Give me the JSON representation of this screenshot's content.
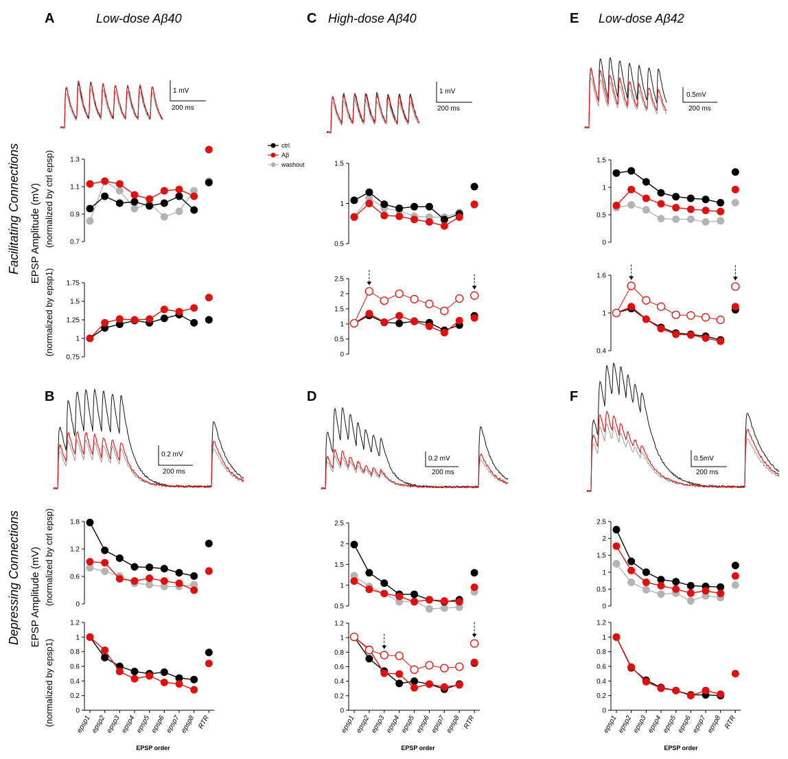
{
  "colors": {
    "ctrl": "#000000",
    "abeta": "#e0100f",
    "washout": "#b4b4b4"
  },
  "row_labels": {
    "facilitating": "Facilitating Connections",
    "depressing": "Depressing Connections",
    "ylabel_main": "EPSP Amplitude (mV)",
    "ylabel_ctrl": "(normalized by ctrl epsp)",
    "ylabel_epsp1": "(normalized by epsp1)"
  },
  "legend": [
    {
      "key": "ctrl",
      "label": "ctrl"
    },
    {
      "key": "abeta",
      "label": "Aβ"
    },
    {
      "key": "washout",
      "label": "washout"
    }
  ],
  "xlabel": "EPSP order",
  "categories": [
    "epsp1",
    "epsp2",
    "epsp3",
    "epsp4",
    "epsp5",
    "epsp6",
    "epsp7",
    "epsp8",
    "RTR"
  ],
  "panels": [
    {
      "letter": "A",
      "title": "Low-dose Aβ40",
      "scalebar": {
        "amp": "1 mV",
        "time": "200 ms"
      }
    },
    {
      "letter": "B",
      "title": "",
      "scalebar": {
        "amp": "0.2 mV",
        "time": "200 ms"
      }
    },
    {
      "letter": "C",
      "title": "High-dose Aβ40",
      "scalebar": {
        "amp": "1 mV",
        "time": "200 ms"
      }
    },
    {
      "letter": "D",
      "title": "",
      "scalebar": {
        "amp": "0.2 mV",
        "time": "200 ms"
      }
    },
    {
      "letter": "E",
      "title": "Low-dose Aβ42",
      "scalebar": {
        "amp": "0.5mV",
        "time": "200 ms"
      }
    },
    {
      "letter": "F",
      "title": "",
      "scalebar": {
        "amp": "0.5mV",
        "time": "200 ms"
      }
    }
  ],
  "chart_data": [
    {
      "panel": "A",
      "kind": "normalized by ctrl epsp",
      "type": "line",
      "ylim": [
        0.7,
        1.3
      ],
      "yticks": [
        "0.7",
        "0.9",
        "1.1",
        "1.3"
      ],
      "series": [
        {
          "name": "ctrl",
          "values": [
            0.94,
            1.03,
            0.98,
            0.99,
            0.96,
            0.98,
            1.03,
            0.93
          ],
          "rtr": 1.13
        },
        {
          "name": "Aβ",
          "values": [
            1.12,
            1.14,
            1.12,
            1.04,
            1.01,
            1.07,
            1.08,
            1.03
          ],
          "rtr": 1.37
        },
        {
          "name": "washout",
          "values": [
            0.85,
            1.14,
            1.07,
            0.94,
            0.98,
            0.88,
            0.92,
            1.07
          ],
          "rtr": 1.14
        }
      ]
    },
    {
      "panel": "A",
      "kind": "normalized by epsp1",
      "type": "line",
      "ylim": [
        0.75,
        1.75
      ],
      "yticks": [
        "0.75",
        "1",
        "1.25",
        "1.5",
        "1.75"
      ],
      "series": [
        {
          "name": "ctrl",
          "values": [
            1.0,
            1.14,
            1.19,
            1.24,
            1.21,
            1.27,
            1.32,
            1.21
          ],
          "rtr": 1.25
        },
        {
          "name": "Aβ",
          "values": [
            1.0,
            1.21,
            1.26,
            1.25,
            1.26,
            1.39,
            1.36,
            1.41
          ],
          "rtr": 1.55
        }
      ]
    },
    {
      "panel": "C",
      "kind": "normalized by ctrl epsp",
      "type": "line",
      "ylim": [
        0.5,
        1.5
      ],
      "yticks": [
        "0.5",
        "1",
        "1.5"
      ],
      "series": [
        {
          "name": "ctrl",
          "values": [
            1.04,
            1.14,
            0.99,
            0.94,
            0.96,
            0.96,
            0.8,
            0.87
          ],
          "rtr": 1.21
        },
        {
          "name": "Aβ",
          "values": [
            0.83,
            1.0,
            0.85,
            0.84,
            0.8,
            0.77,
            0.72,
            0.83
          ],
          "rtr": 0.99
        },
        {
          "name": "washout",
          "values": [
            0.84,
            1.07,
            0.94,
            0.91,
            0.84,
            0.83,
            0.83,
            0.89
          ],
          "rtr": 0.98
        }
      ]
    },
    {
      "panel": "C",
      "kind": "normalized by epsp1",
      "type": "line",
      "ylim": [
        0,
        2.5
      ],
      "yticks": [
        "0",
        "0.5",
        "1",
        "1.5",
        "2",
        "2.5"
      ],
      "series": [
        {
          "name": "ctrl",
          "values": [
            1.02,
            1.28,
            1.05,
            1.02,
            1.09,
            1.04,
            0.79,
            0.96
          ],
          "rtr": 1.27
        },
        {
          "name": "Aβ",
          "values": [
            1.02,
            1.34,
            1.06,
            1.27,
            1.08,
            0.92,
            0.71,
            1.11
          ],
          "rtr": 1.2
        },
        {
          "name": "Aβ (scaled)",
          "values": [
            1.02,
            2.08,
            1.77,
            2.0,
            1.82,
            1.66,
            1.43,
            1.84
          ],
          "rtr": 1.94
        }
      ]
    },
    {
      "panel": "E",
      "kind": "normalized by ctrl epsp",
      "type": "line",
      "ylim": [
        0,
        1.5
      ],
      "yticks": [
        "0",
        "0.5",
        "1",
        "1.5"
      ],
      "series": [
        {
          "name": "ctrl",
          "values": [
            1.26,
            1.3,
            1.1,
            0.9,
            0.83,
            0.8,
            0.78,
            0.72
          ],
          "rtr": 1.28
        },
        {
          "name": "Aβ",
          "values": [
            0.67,
            0.96,
            0.8,
            0.7,
            0.63,
            0.6,
            0.58,
            0.56
          ],
          "rtr": 0.96
        },
        {
          "name": "washout",
          "values": [
            0.63,
            0.68,
            0.59,
            0.43,
            0.42,
            0.42,
            0.37,
            0.39
          ],
          "rtr": 0.72
        }
      ]
    },
    {
      "panel": "E",
      "kind": "normalized by epsp1",
      "type": "line",
      "ylim": [
        0.4,
        1.6
      ],
      "yticks": [
        "0.4",
        "1",
        "1.6"
      ],
      "series": [
        {
          "name": "ctrl",
          "values": [
            1.0,
            1.07,
            0.9,
            0.77,
            0.68,
            0.66,
            0.63,
            0.57
          ],
          "rtr": 1.05
        },
        {
          "name": "Aβ",
          "values": [
            1.0,
            1.1,
            0.9,
            0.75,
            0.66,
            0.65,
            0.6,
            0.55
          ],
          "rtr": 1.1
        },
        {
          "name": "Aβ (scaled)",
          "values": [
            1.0,
            1.43,
            1.2,
            1.1,
            0.97,
            0.96,
            0.93,
            0.89
          ],
          "rtr": 1.42
        }
      ]
    },
    {
      "panel": "B",
      "kind": "normalized by ctrl epsp",
      "type": "line",
      "ylim": [
        0,
        1.8
      ],
      "yticks": [
        "0",
        "0.6",
        "1.2",
        "1.8"
      ],
      "series": [
        {
          "name": "ctrl",
          "values": [
            1.78,
            1.17,
            1.0,
            0.81,
            0.8,
            0.77,
            0.68,
            0.61
          ],
          "rtr": 1.32
        },
        {
          "name": "Aβ",
          "values": [
            0.92,
            0.9,
            0.55,
            0.5,
            0.56,
            0.5,
            0.45,
            0.3
          ],
          "rtr": 0.72
        },
        {
          "name": "washout",
          "values": [
            0.79,
            0.71,
            0.61,
            0.45,
            0.42,
            0.38,
            0.38,
            0.42
          ],
          "rtr": 0.71
        }
      ]
    },
    {
      "panel": "B",
      "kind": "normalized by epsp1",
      "type": "line",
      "ylim": [
        0,
        1.2
      ],
      "yticks": [
        "0",
        "0.2",
        "0.4",
        "0.6",
        "0.8",
        "1",
        "1.2"
      ],
      "series": [
        {
          "name": "ctrl",
          "values": [
            1.0,
            0.72,
            0.6,
            0.53,
            0.5,
            0.52,
            0.44,
            0.42
          ],
          "rtr": 0.79
        },
        {
          "name": "Aβ",
          "values": [
            1.0,
            0.82,
            0.53,
            0.43,
            0.47,
            0.38,
            0.36,
            0.28
          ],
          "rtr": 0.64
        }
      ]
    },
    {
      "panel": "D",
      "kind": "normalized by ctrl epsp",
      "type": "line",
      "ylim": [
        0.5,
        2.5
      ],
      "yticks": [
        "0.5",
        "1",
        "1.5",
        "2",
        "2.5"
      ],
      "series": [
        {
          "name": "ctrl",
          "values": [
            1.98,
            1.3,
            1.05,
            0.78,
            0.78,
            0.65,
            0.6,
            0.65
          ],
          "rtr": 1.3
        },
        {
          "name": "Aβ",
          "values": [
            1.1,
            0.9,
            0.8,
            0.73,
            0.6,
            0.65,
            0.62,
            0.6
          ],
          "rtr": 0.95
        },
        {
          "name": "washout",
          "values": [
            1.23,
            0.97,
            0.8,
            0.6,
            0.62,
            0.43,
            0.45,
            0.47
          ],
          "rtr": 0.84
        }
      ]
    },
    {
      "panel": "D",
      "kind": "normalized by epsp1",
      "type": "line",
      "ylim": [
        0,
        1.2
      ],
      "yticks": [
        "0",
        "0.2",
        "0.4",
        "0.6",
        "0.8",
        "1",
        "1.2"
      ],
      "series": [
        {
          "name": "ctrl",
          "values": [
            1.01,
            0.71,
            0.54,
            0.37,
            0.4,
            0.36,
            0.29,
            0.36
          ],
          "rtr": 0.65
        },
        {
          "name": "Aβ",
          "values": [
            1.01,
            0.84,
            0.51,
            0.5,
            0.31,
            0.36,
            0.32,
            0.35
          ],
          "rtr": 0.66
        },
        {
          "name": "Aβ (scaled)",
          "values": [
            1.01,
            0.83,
            0.76,
            0.75,
            0.56,
            0.62,
            0.58,
            0.6
          ],
          "rtr": 0.92
        }
      ]
    },
    {
      "panel": "F",
      "kind": "normalized by ctrl epsp",
      "type": "line",
      "ylim": [
        0,
        2.5
      ],
      "yticks": [
        "0",
        "0.5",
        "1",
        "1.5",
        "2",
        "2.5"
      ],
      "series": [
        {
          "name": "ctrl",
          "values": [
            2.26,
            1.32,
            1.0,
            0.78,
            0.72,
            0.6,
            0.58,
            0.56
          ],
          "rtr": 1.2
        },
        {
          "name": "Aβ",
          "values": [
            1.77,
            1.05,
            0.7,
            0.6,
            0.5,
            0.38,
            0.45,
            0.37
          ],
          "rtr": 0.89
        },
        {
          "name": "washout",
          "values": [
            1.25,
            0.7,
            0.48,
            0.35,
            0.38,
            0.15,
            0.3,
            0.25
          ],
          "rtr": 0.62
        }
      ]
    },
    {
      "panel": "F",
      "kind": "normalized by epsp1",
      "type": "line",
      "ylim": [
        0,
        1.2
      ],
      "yticks": [
        "0",
        "0.2",
        "0.4",
        "0.6",
        "0.8",
        "1",
        "1.2"
      ],
      "series": [
        {
          "name": "ctrl",
          "values": [
            1.0,
            0.58,
            0.41,
            0.31,
            0.27,
            0.21,
            0.21,
            0.2
          ],
          "rtr": null
        },
        {
          "name": "Aβ",
          "values": [
            1.0,
            0.59,
            0.39,
            0.3,
            0.27,
            0.2,
            0.27,
            0.22
          ],
          "rtr": 0.5
        }
      ]
    }
  ]
}
